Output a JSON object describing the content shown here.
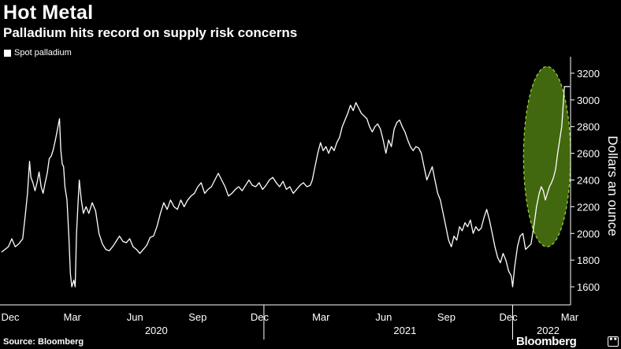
{
  "header": {
    "title": "Hot Metal",
    "subtitle": "Palladium hits record on supply risk concerns"
  },
  "footer": {
    "source": "Source: Bloomberg",
    "brand": "Bloomberg",
    "brand_mark": "■ ■"
  },
  "chart_data": {
    "type": "line",
    "title": "Hot Metal",
    "subtitle": "Palladium hits record on supply risk concerns",
    "ylabel": "Dollars an ounce",
    "xlabel": "",
    "ylim": [
      1500,
      3300
    ],
    "yticks": [
      1600,
      1800,
      2000,
      2200,
      2400,
      2600,
      2800,
      3000,
      3200
    ],
    "yticks_labels": [
      "1600",
      "1800",
      "2000",
      "2200",
      "2400",
      "2600",
      "2800",
      "3000",
      "3200"
    ],
    "xlim": [
      "2019-12-01",
      "2022-03-15"
    ],
    "x_ticks": [
      {
        "date": "2019-12-01",
        "label": "Dec"
      },
      {
        "date": "2020-03-01",
        "label": "Mar"
      },
      {
        "date": "2020-06-01",
        "label": "Jun"
      },
      {
        "date": "2020-09-01",
        "label": "Sep"
      },
      {
        "date": "2020-12-01",
        "label": "Dec"
      },
      {
        "date": "2021-03-01",
        "label": "Mar"
      },
      {
        "date": "2021-06-01",
        "label": "Jun"
      },
      {
        "date": "2021-09-01",
        "label": "Sep"
      },
      {
        "date": "2021-12-01",
        "label": "Dec"
      },
      {
        "date": "2022-03-01",
        "label": "Mar"
      }
    ],
    "year_labels": [
      {
        "date": "2020-07-15",
        "label": "2020"
      },
      {
        "date": "2021-07-15",
        "label": "2021"
      },
      {
        "date": "2022-02-10",
        "label": "2022"
      }
    ],
    "year_dividers": [
      "2020-12-20",
      "2021-12-20"
    ],
    "legend": {
      "position": "top-left",
      "entries": [
        "Spot palladium"
      ]
    },
    "grid": false,
    "highlight": {
      "shape": "ellipse",
      "color": "#4d7a12",
      "edge_color": "#9bd53a",
      "x_range": [
        "2022-01-05",
        "2022-03-15"
      ],
      "y_range": [
        1900,
        3250
      ]
    },
    "series": [
      {
        "name": "Spot palladium",
        "color": "#ffffff",
        "points": [
          [
            "2019-12-01",
            1860
          ],
          [
            "2019-12-06",
            1880
          ],
          [
            "2019-12-11",
            1900
          ],
          [
            "2019-12-16",
            1960
          ],
          [
            "2019-12-21",
            1900
          ],
          [
            "2019-12-26",
            1920
          ],
          [
            "2020-01-01",
            1960
          ],
          [
            "2020-01-05",
            2150
          ],
          [
            "2020-01-08",
            2300
          ],
          [
            "2020-01-11",
            2540
          ],
          [
            "2020-01-13",
            2420
          ],
          [
            "2020-01-16",
            2380
          ],
          [
            "2020-01-19",
            2320
          ],
          [
            "2020-01-22",
            2380
          ],
          [
            "2020-01-25",
            2460
          ],
          [
            "2020-01-28",
            2350
          ],
          [
            "2020-01-31",
            2300
          ],
          [
            "2020-02-03",
            2380
          ],
          [
            "2020-02-06",
            2450
          ],
          [
            "2020-02-09",
            2560
          ],
          [
            "2020-02-12",
            2580
          ],
          [
            "2020-02-15",
            2630
          ],
          [
            "2020-02-18",
            2700
          ],
          [
            "2020-02-21",
            2780
          ],
          [
            "2020-02-24",
            2860
          ],
          [
            "2020-02-26",
            2620
          ],
          [
            "2020-02-28",
            2520
          ],
          [
            "2020-03-01",
            2500
          ],
          [
            "2020-03-03",
            2350
          ],
          [
            "2020-03-06",
            2250
          ],
          [
            "2020-03-09",
            1950
          ],
          [
            "2020-03-11",
            1700
          ],
          [
            "2020-03-13",
            1600
          ],
          [
            "2020-03-16",
            1650
          ],
          [
            "2020-03-18",
            1600
          ],
          [
            "2020-03-20",
            2000
          ],
          [
            "2020-03-22",
            2200
          ],
          [
            "2020-03-24",
            2400
          ],
          [
            "2020-03-27",
            2250
          ],
          [
            "2020-03-30",
            2150
          ],
          [
            "2020-04-03",
            2200
          ],
          [
            "2020-04-07",
            2150
          ],
          [
            "2020-04-12",
            2230
          ],
          [
            "2020-04-17",
            2170
          ],
          [
            "2020-04-22",
            2000
          ],
          [
            "2020-04-27",
            1920
          ],
          [
            "2020-05-02",
            1880
          ],
          [
            "2020-05-07",
            1870
          ],
          [
            "2020-05-12",
            1900
          ],
          [
            "2020-05-17",
            1940
          ],
          [
            "2020-05-22",
            1980
          ],
          [
            "2020-05-27",
            1940
          ],
          [
            "2020-06-01",
            1930
          ],
          [
            "2020-06-06",
            1960
          ],
          [
            "2020-06-11",
            1900
          ],
          [
            "2020-06-16",
            1880
          ],
          [
            "2020-06-21",
            1850
          ],
          [
            "2020-06-26",
            1880
          ],
          [
            "2020-07-01",
            1910
          ],
          [
            "2020-07-06",
            1970
          ],
          [
            "2020-07-11",
            1980
          ],
          [
            "2020-07-16",
            2050
          ],
          [
            "2020-07-21",
            2150
          ],
          [
            "2020-07-26",
            2230
          ],
          [
            "2020-07-31",
            2180
          ],
          [
            "2020-08-05",
            2250
          ],
          [
            "2020-08-10",
            2200
          ],
          [
            "2020-08-15",
            2180
          ],
          [
            "2020-08-20",
            2250
          ],
          [
            "2020-08-25",
            2200
          ],
          [
            "2020-08-30",
            2250
          ],
          [
            "2020-09-04",
            2280
          ],
          [
            "2020-09-09",
            2300
          ],
          [
            "2020-09-14",
            2350
          ],
          [
            "2020-09-19",
            2380
          ],
          [
            "2020-09-24",
            2300
          ],
          [
            "2020-09-29",
            2330
          ],
          [
            "2020-10-04",
            2350
          ],
          [
            "2020-10-09",
            2400
          ],
          [
            "2020-10-14",
            2450
          ],
          [
            "2020-10-19",
            2400
          ],
          [
            "2020-10-24",
            2350
          ],
          [
            "2020-10-29",
            2280
          ],
          [
            "2020-11-03",
            2300
          ],
          [
            "2020-11-08",
            2330
          ],
          [
            "2020-11-13",
            2350
          ],
          [
            "2020-11-18",
            2320
          ],
          [
            "2020-11-23",
            2360
          ],
          [
            "2020-11-28",
            2400
          ],
          [
            "2020-12-03",
            2360
          ],
          [
            "2020-12-08",
            2350
          ],
          [
            "2020-12-13",
            2380
          ],
          [
            "2020-12-18",
            2330
          ],
          [
            "2020-12-23",
            2360
          ],
          [
            "2020-12-28",
            2400
          ],
          [
            "2021-01-02",
            2420
          ],
          [
            "2021-01-07",
            2380
          ],
          [
            "2021-01-12",
            2350
          ],
          [
            "2021-01-17",
            2390
          ],
          [
            "2021-01-22",
            2330
          ],
          [
            "2021-01-27",
            2350
          ],
          [
            "2021-02-01",
            2300
          ],
          [
            "2021-02-06",
            2330
          ],
          [
            "2021-02-11",
            2360
          ],
          [
            "2021-02-16",
            2380
          ],
          [
            "2021-02-21",
            2350
          ],
          [
            "2021-02-26",
            2360
          ],
          [
            "2021-03-01",
            2400
          ],
          [
            "2021-03-05",
            2500
          ],
          [
            "2021-03-09",
            2600
          ],
          [
            "2021-03-13",
            2680
          ],
          [
            "2021-03-17",
            2620
          ],
          [
            "2021-03-21",
            2650
          ],
          [
            "2021-03-25",
            2600
          ],
          [
            "2021-03-29",
            2650
          ],
          [
            "2021-04-02",
            2620
          ],
          [
            "2021-04-06",
            2680
          ],
          [
            "2021-04-10",
            2720
          ],
          [
            "2021-04-14",
            2800
          ],
          [
            "2021-04-18",
            2850
          ],
          [
            "2021-04-22",
            2900
          ],
          [
            "2021-04-26",
            2960
          ],
          [
            "2021-04-30",
            2920
          ],
          [
            "2021-05-04",
            2980
          ],
          [
            "2021-05-08",
            2940
          ],
          [
            "2021-05-12",
            2900
          ],
          [
            "2021-05-16",
            2880
          ],
          [
            "2021-05-20",
            2860
          ],
          [
            "2021-05-24",
            2800
          ],
          [
            "2021-05-28",
            2760
          ],
          [
            "2021-06-01",
            2800
          ],
          [
            "2021-06-05",
            2820
          ],
          [
            "2021-06-09",
            2780
          ],
          [
            "2021-06-13",
            2700
          ],
          [
            "2021-06-17",
            2600
          ],
          [
            "2021-06-21",
            2700
          ],
          [
            "2021-06-25",
            2650
          ],
          [
            "2021-06-29",
            2780
          ],
          [
            "2021-07-03",
            2830
          ],
          [
            "2021-07-07",
            2850
          ],
          [
            "2021-07-11",
            2800
          ],
          [
            "2021-07-15",
            2760
          ],
          [
            "2021-07-19",
            2700
          ],
          [
            "2021-07-23",
            2650
          ],
          [
            "2021-07-27",
            2620
          ],
          [
            "2021-07-31",
            2650
          ],
          [
            "2021-08-04",
            2640
          ],
          [
            "2021-08-08",
            2600
          ],
          [
            "2021-08-12",
            2500
          ],
          [
            "2021-08-16",
            2400
          ],
          [
            "2021-08-20",
            2450
          ],
          [
            "2021-08-24",
            2500
          ],
          [
            "2021-08-28",
            2400
          ],
          [
            "2021-09-01",
            2300
          ],
          [
            "2021-09-05",
            2250
          ],
          [
            "2021-09-09",
            2150
          ],
          [
            "2021-09-13",
            2050
          ],
          [
            "2021-09-17",
            1950
          ],
          [
            "2021-09-21",
            1900
          ],
          [
            "2021-09-25",
            1980
          ],
          [
            "2021-09-29",
            1950
          ],
          [
            "2021-10-03",
            2050
          ],
          [
            "2021-10-07",
            2020
          ],
          [
            "2021-10-11",
            2080
          ],
          [
            "2021-10-15",
            2050
          ],
          [
            "2021-10-19",
            2100
          ],
          [
            "2021-10-23",
            2000
          ],
          [
            "2021-10-27",
            2050
          ],
          [
            "2021-10-31",
            2020
          ],
          [
            "2021-11-04",
            2040
          ],
          [
            "2021-11-08",
            2120
          ],
          [
            "2021-11-12",
            2180
          ],
          [
            "2021-11-16",
            2100
          ],
          [
            "2021-11-20",
            2000
          ],
          [
            "2021-11-24",
            1900
          ],
          [
            "2021-11-28",
            1820
          ],
          [
            "2021-12-02",
            1780
          ],
          [
            "2021-12-06",
            1850
          ],
          [
            "2021-12-10",
            1800
          ],
          [
            "2021-12-14",
            1720
          ],
          [
            "2021-12-18",
            1680
          ],
          [
            "2021-12-20",
            1600
          ],
          [
            "2021-12-23",
            1750
          ],
          [
            "2021-12-27",
            1900
          ],
          [
            "2021-12-31",
            1980
          ],
          [
            "2022-01-04",
            2000
          ],
          [
            "2022-01-08",
            1880
          ],
          [
            "2022-01-12",
            1900
          ],
          [
            "2022-01-16",
            1920
          ],
          [
            "2022-01-20",
            2050
          ],
          [
            "2022-01-24",
            2200
          ],
          [
            "2022-01-28",
            2300
          ],
          [
            "2022-01-31",
            2350
          ],
          [
            "2022-02-03",
            2320
          ],
          [
            "2022-02-06",
            2250
          ],
          [
            "2022-02-09",
            2300
          ],
          [
            "2022-02-12",
            2350
          ],
          [
            "2022-02-15",
            2380
          ],
          [
            "2022-02-18",
            2420
          ],
          [
            "2022-02-21",
            2480
          ],
          [
            "2022-02-24",
            2600
          ],
          [
            "2022-02-27",
            2700
          ],
          [
            "2022-03-02",
            2800
          ],
          [
            "2022-03-04",
            2950
          ],
          [
            "2022-03-06",
            3100
          ],
          [
            "2022-03-08",
            3100
          ],
          [
            "2022-03-14",
            3100
          ]
        ]
      }
    ]
  }
}
